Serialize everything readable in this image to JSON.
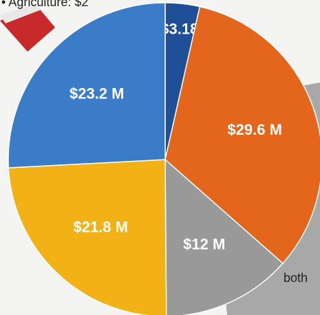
{
  "chart_data": {
    "type": "pie",
    "annotations": [
      "• Agriculture: $2",
      "both"
    ],
    "categories": [
      null,
      null,
      null,
      null,
      null
    ],
    "values": [
      3.18,
      29.6,
      12,
      21.8,
      23.2
    ],
    "value_labels": [
      "$3.18 M",
      "$29.6 M",
      "$12 M",
      "$21.8 M",
      "$23.2 M"
    ],
    "colors": [
      "#1f4f97",
      "#e4661c",
      "#999999",
      "#f2b215",
      "#3b7cc8"
    ]
  }
}
